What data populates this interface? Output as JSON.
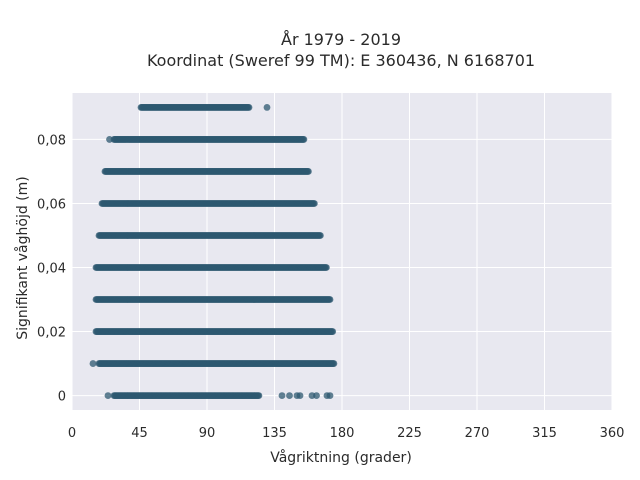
{
  "chart_data": {
    "type": "scatter",
    "title_line1": "År 1979 - 2019",
    "title_line2": "Koordinat (Sweref 99 TM): E 360436, N 6168701",
    "xlabel": "Vågriktning (grader)",
    "ylabel": "Signifikant våghöjd (m)",
    "xlim": [
      0,
      360
    ],
    "ylim": [
      -0.0045,
      0.0945
    ],
    "x_ticks": [
      0,
      45,
      90,
      135,
      180,
      225,
      270,
      315,
      360
    ],
    "x_tick_labels": [
      "0",
      "45",
      "90",
      "135",
      "180",
      "225",
      "270",
      "315",
      "360"
    ],
    "y_ticks": [
      0,
      0.02,
      0.04,
      0.06,
      0.08
    ],
    "y_tick_labels": [
      "0",
      "0,02",
      "0,04",
      "0,06",
      "0,08"
    ],
    "grid": true,
    "marker_color": "#2e5870",
    "background_color": "#e8e8f0",
    "bands": [
      {
        "y": 0.0,
        "x_range": [
          28,
          125
        ],
        "outliers": [
          24,
          140,
          145,
          150,
          152,
          160,
          163,
          170,
          172
        ]
      },
      {
        "y": 0.01,
        "x_range": [
          18,
          175
        ],
        "outliers": [
          14
        ]
      },
      {
        "y": 0.02,
        "x_range": [
          16,
          174
        ],
        "outliers": []
      },
      {
        "y": 0.03,
        "x_range": [
          16,
          172
        ],
        "outliers": []
      },
      {
        "y": 0.04,
        "x_range": [
          16,
          170
        ],
        "outliers": []
      },
      {
        "y": 0.05,
        "x_range": [
          18,
          166
        ],
        "outliers": []
      },
      {
        "y": 0.06,
        "x_range": [
          20,
          162
        ],
        "outliers": []
      },
      {
        "y": 0.07,
        "x_range": [
          22,
          158
        ],
        "outliers": []
      },
      {
        "y": 0.08,
        "x_range": [
          28,
          155
        ],
        "outliers": [
          25
        ]
      },
      {
        "y": 0.09,
        "x_range": [
          46,
          118
        ],
        "outliers": [
          130
        ]
      }
    ]
  }
}
